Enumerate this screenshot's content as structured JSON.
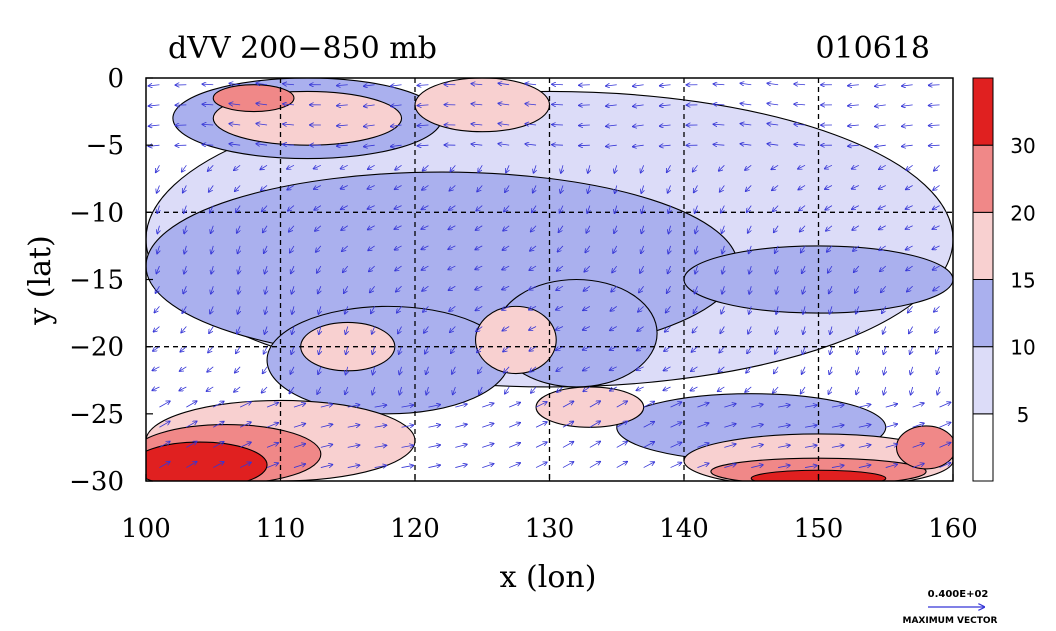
{
  "chart_data": {
    "type": "heatmap",
    "title": "dVV 200−850 mb",
    "date_label": "010618",
    "xlabel": "x (lon)",
    "ylabel": "y (lat)",
    "xlim": [
      100,
      160
    ],
    "ylim": [
      -30,
      0
    ],
    "x_ticks": [
      100,
      110,
      120,
      130,
      140,
      150,
      160
    ],
    "y_ticks": [
      0,
      -5,
      -10,
      -15,
      -20,
      -25,
      -30
    ],
    "x_tick_labels": [
      "100",
      "110",
      "120",
      "130",
      "140",
      "150",
      "160"
    ],
    "y_tick_labels": [
      "0",
      "−5",
      "−10",
      "−15",
      "−20",
      "−25",
      "−30"
    ],
    "gridlines_x": [
      110,
      120,
      130,
      140,
      150
    ],
    "gridlines_y": [
      -10,
      -20
    ],
    "colorbar": {
      "levels": [
        0,
        5,
        10,
        15,
        20,
        30,
        35
      ],
      "tick_labels": [
        "5",
        "10",
        "15",
        "20",
        "30"
      ],
      "colors": [
        "#ffffff",
        "#dcdcf8",
        "#aab0ee",
        "#f8d0d0",
        "#f08888",
        "#e02020"
      ]
    },
    "vector_reference": {
      "value": "0.400E+02",
      "caption": "MAXIMUM VECTOR"
    },
    "regions": [
      {
        "level": 1,
        "cx": 130,
        "cy": -12,
        "rx": 30,
        "ry": 11
      },
      {
        "level": 2,
        "cx": 122,
        "cy": -14,
        "rx": 22,
        "ry": 7
      },
      {
        "level": 2,
        "cx": 118,
        "cy": -21,
        "rx": 9,
        "ry": 4
      },
      {
        "level": 2,
        "cx": 132,
        "cy": -19,
        "rx": 6,
        "ry": 4
      },
      {
        "level": 2,
        "cx": 150,
        "cy": -15,
        "rx": 10,
        "ry": 2.5
      },
      {
        "level": 2,
        "cx": 145,
        "cy": -26,
        "rx": 10,
        "ry": 2.5
      },
      {
        "level": 2,
        "cx": 112,
        "cy": -3,
        "rx": 10,
        "ry": 3
      },
      {
        "level": 3,
        "cx": 115,
        "cy": -20,
        "rx": 3.5,
        "ry": 1.8
      },
      {
        "level": 3,
        "cx": 127.5,
        "cy": -19.5,
        "rx": 3,
        "ry": 2.5
      },
      {
        "level": 3,
        "cx": 112,
        "cy": -3,
        "rx": 7,
        "ry": 2
      },
      {
        "level": 3,
        "cx": 125,
        "cy": -2,
        "rx": 5,
        "ry": 2
      },
      {
        "level": 3,
        "cx": 133,
        "cy": -24.5,
        "rx": 4,
        "ry": 1.5
      },
      {
        "level": 3,
        "cx": 110,
        "cy": -27,
        "rx": 10,
        "ry": 3
      },
      {
        "level": 3,
        "cx": 150,
        "cy": -28.5,
        "rx": 10,
        "ry": 2
      },
      {
        "level": 4,
        "cx": 106,
        "cy": -28,
        "rx": 7,
        "ry": 2.2
      },
      {
        "level": 4,
        "cx": 108,
        "cy": -1.5,
        "rx": 3,
        "ry": 1
      },
      {
        "level": 4,
        "cx": 150,
        "cy": -29.3,
        "rx": 8,
        "ry": 1
      },
      {
        "level": 4,
        "cx": 158,
        "cy": -27.5,
        "rx": 2.2,
        "ry": 1.6
      },
      {
        "level": 5,
        "cx": 104,
        "cy": -28.8,
        "rx": 5,
        "ry": 1.7
      },
      {
        "level": 5,
        "cx": 150,
        "cy": -29.8,
        "rx": 5,
        "ry": 0.6
      }
    ]
  }
}
